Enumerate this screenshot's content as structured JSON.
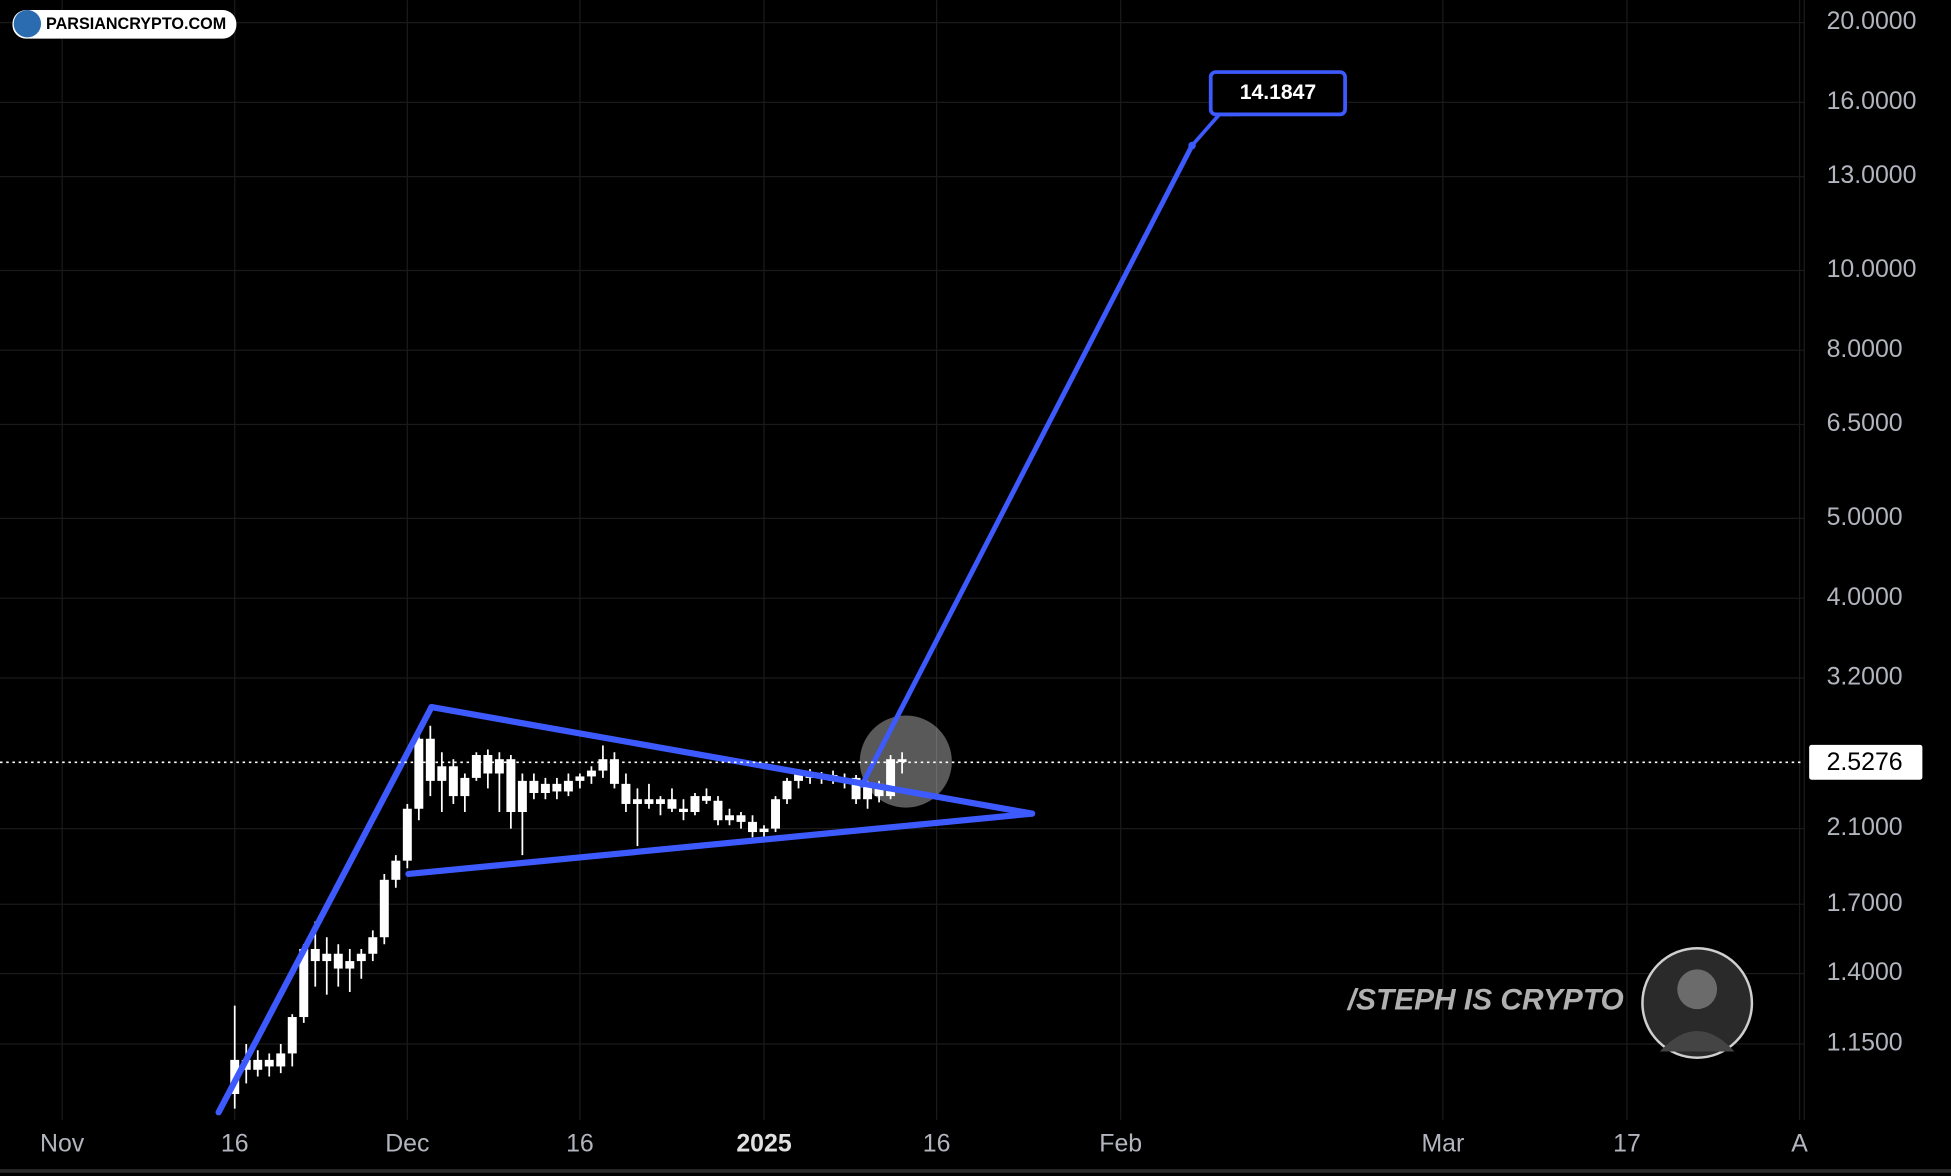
{
  "chart_data": {
    "type": "candlestick",
    "watermark_top": "PARSIANCRYPTO.COM",
    "watermark": "/STEPH IS CRYPTO",
    "color": "#ffffff",
    "x": [
      15,
      16,
      17,
      18,
      19,
      20,
      21,
      22,
      23,
      24,
      25,
      26,
      27,
      28,
      29,
      30,
      31,
      32,
      33,
      34,
      35,
      36,
      37,
      38,
      39,
      40,
      41,
      42,
      43,
      44,
      45,
      46,
      47,
      48,
      49,
      50,
      51,
      52,
      53,
      54,
      55,
      56,
      57,
      58,
      59,
      60,
      61,
      62,
      63,
      64,
      65,
      66,
      67,
      68,
      69,
      70,
      71,
      72,
      73
    ],
    "open": [
      1.0,
      1.1,
      1.07,
      1.1,
      1.08,
      1.12,
      1.24,
      1.5,
      1.45,
      1.48,
      1.42,
      1.45,
      1.48,
      1.55,
      1.82,
      1.92,
      2.22,
      2.7,
      2.4,
      2.5,
      2.3,
      2.42,
      2.58,
      2.45,
      2.55,
      2.2,
      2.4,
      2.32,
      2.38,
      2.33,
      2.4,
      2.43,
      2.47,
      2.55,
      2.38,
      2.25,
      2.28,
      2.25,
      2.28,
      2.22,
      2.2,
      2.3,
      2.27,
      2.15,
      2.18,
      2.14,
      2.08,
      2.1,
      2.28,
      2.4,
      2.45,
      2.42,
      2.44,
      2.4,
      2.42,
      2.28,
      2.38,
      2.3,
      2.55
    ],
    "high": [
      1.28,
      1.15,
      1.13,
      1.12,
      1.15,
      1.25,
      1.52,
      1.62,
      1.55,
      1.52,
      1.5,
      1.5,
      1.58,
      1.85,
      1.95,
      2.25,
      2.8,
      2.8,
      2.6,
      2.55,
      2.45,
      2.6,
      2.62,
      2.6,
      2.58,
      2.45,
      2.45,
      2.42,
      2.42,
      2.45,
      2.45,
      2.5,
      2.65,
      2.6,
      2.45,
      2.35,
      2.38,
      2.3,
      2.35,
      2.28,
      2.32,
      2.35,
      2.3,
      2.22,
      2.2,
      2.18,
      2.12,
      2.3,
      2.42,
      2.48,
      2.48,
      2.46,
      2.47,
      2.45,
      2.44,
      2.4,
      2.4,
      2.58,
      2.6
    ],
    "low": [
      0.96,
      1.03,
      1.05,
      1.05,
      1.06,
      1.08,
      1.22,
      1.35,
      1.32,
      1.35,
      1.33,
      1.38,
      1.45,
      1.52,
      1.78,
      1.88,
      2.15,
      2.3,
      2.2,
      2.25,
      2.2,
      2.4,
      2.35,
      2.2,
      2.1,
      1.95,
      2.28,
      2.28,
      2.28,
      2.3,
      2.35,
      2.38,
      2.42,
      2.35,
      2.2,
      2.0,
      2.22,
      2.18,
      2.2,
      2.15,
      2.18,
      2.25,
      2.12,
      2.12,
      2.1,
      2.05,
      2.02,
      2.08,
      2.25,
      2.35,
      2.38,
      2.38,
      2.38,
      2.35,
      2.25,
      2.22,
      2.26,
      2.28,
      2.45
    ],
    "close": [
      1.1,
      1.07,
      1.1,
      1.08,
      1.12,
      1.24,
      1.5,
      1.45,
      1.48,
      1.42,
      1.45,
      1.48,
      1.55,
      1.82,
      1.92,
      2.22,
      2.7,
      2.4,
      2.5,
      2.3,
      2.42,
      2.58,
      2.45,
      2.55,
      2.2,
      2.4,
      2.32,
      2.38,
      2.33,
      2.4,
      2.43,
      2.47,
      2.55,
      2.38,
      2.25,
      2.28,
      2.25,
      2.28,
      2.22,
      2.2,
      2.3,
      2.27,
      2.15,
      2.18,
      2.14,
      2.08,
      2.1,
      2.28,
      2.4,
      2.45,
      2.42,
      2.44,
      2.4,
      2.42,
      2.28,
      2.38,
      2.3,
      2.55,
      2.53
    ],
    "xlim": [
      -5.4,
      151.4
    ],
    "xticks": [
      {
        "value": 0,
        "label": "Nov"
      },
      {
        "value": 15,
        "label": "16"
      },
      {
        "value": 30,
        "label": "Dec"
      },
      {
        "value": 45,
        "label": "16"
      },
      {
        "value": 61,
        "label": "2025"
      },
      {
        "value": 76,
        "label": "16"
      },
      {
        "value": 92,
        "label": "Feb"
      },
      {
        "value": 120,
        "label": "Mar"
      },
      {
        "value": 136,
        "label": "17"
      },
      {
        "value": 151,
        "label": "A"
      }
    ],
    "log_scale": true,
    "ylim": [
      0.93,
      21.3
    ],
    "yticks": [
      {
        "value": 1.15,
        "label": "1.1500"
      },
      {
        "value": 1.4,
        "label": "1.4000"
      },
      {
        "value": 1.7,
        "label": "1.7000"
      },
      {
        "value": 2.1,
        "label": "2.1000"
      },
      {
        "value": 3.2,
        "label": "3.2000"
      },
      {
        "value": 4,
        "label": "4.0000"
      },
      {
        "value": 5,
        "label": "5.0000"
      },
      {
        "value": 6.5,
        "label": "6.5000"
      },
      {
        "value": 8,
        "label": "8.0000"
      },
      {
        "value": 10,
        "label": "10.0000"
      },
      {
        "value": 13,
        "label": "13.0000"
      },
      {
        "value": 16,
        "label": "16.0000"
      },
      {
        "value": 20,
        "label": "20.0000"
      }
    ],
    "grid": true,
    "last_price": 2.5276,
    "line_color": "#3d5afe",
    "trendlines": [
      {
        "x": [
          13.6,
          32.1
        ],
        "values": [
          0.95,
          2.95
        ]
      },
      {
        "x": [
          32.1,
          84.3
        ],
        "values": [
          2.95,
          2.19
        ]
      },
      {
        "x": [
          30.1,
          84.3
        ],
        "values": [
          1.85,
          2.19
        ]
      }
    ],
    "projection": {
      "x": [
        69.5,
        98.2
      ],
      "values": [
        2.37,
        14.1847
      ]
    }
  }
}
